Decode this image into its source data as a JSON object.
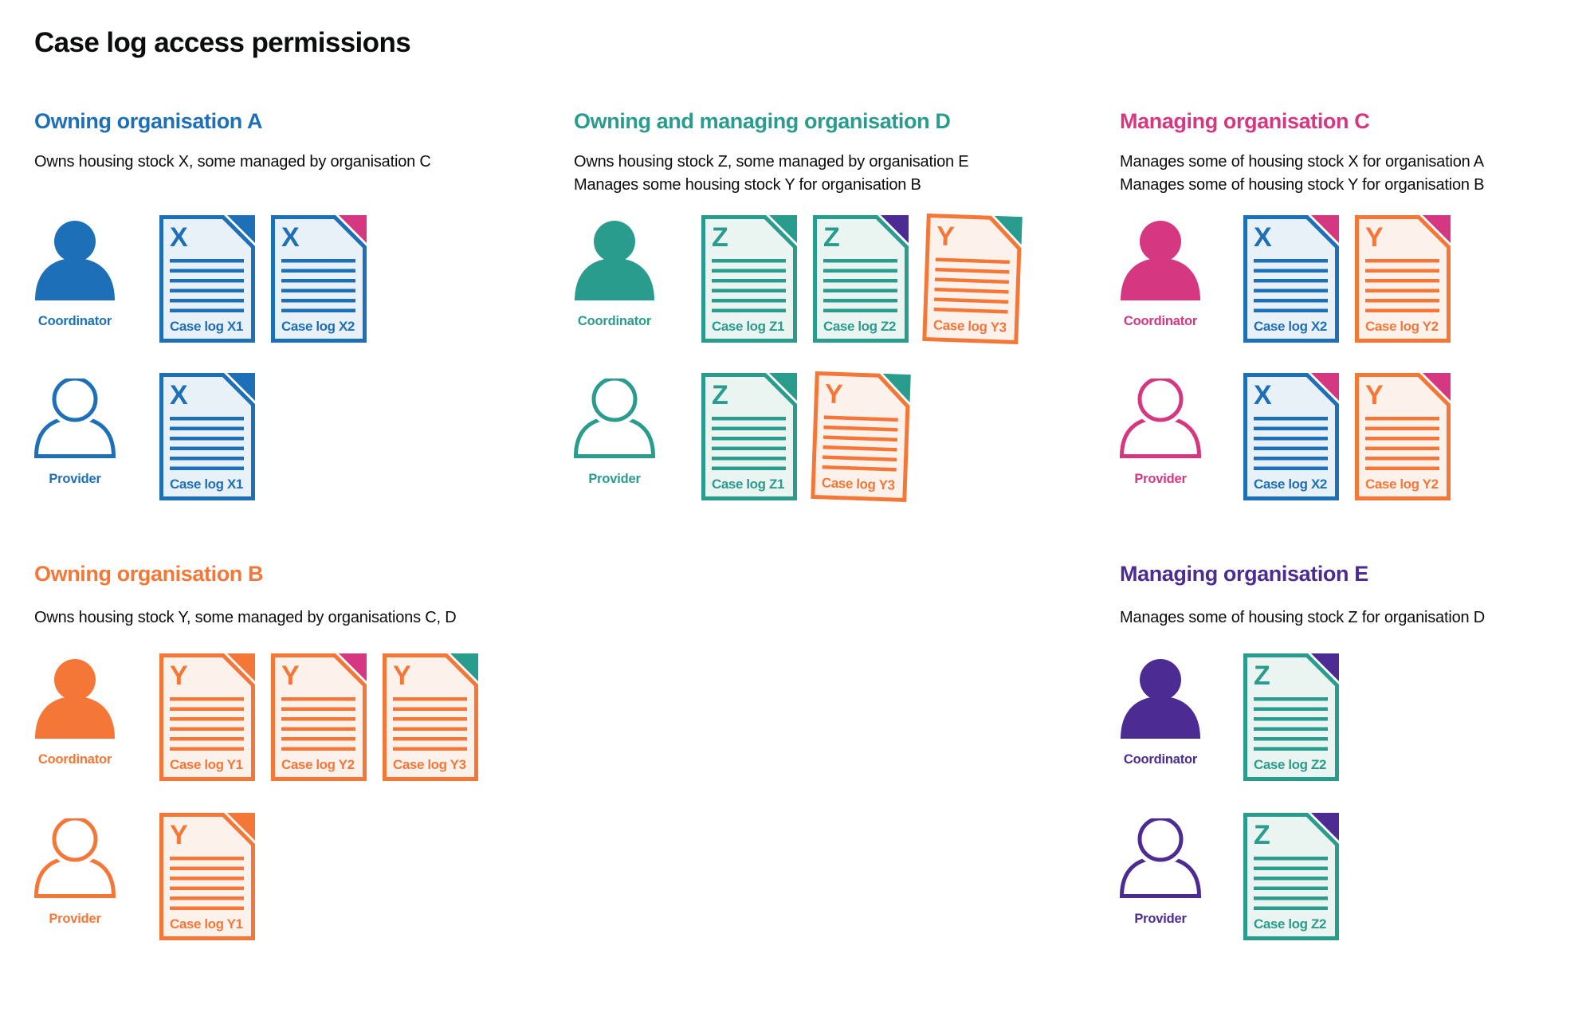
{
  "title": "Case log access permissions",
  "colors": {
    "blue": "#1d70b8",
    "teal": "#2a9c8e",
    "pink": "#d53880",
    "orange": "#f47738",
    "purple": "#4c2c92",
    "text": "#0b0c0c",
    "fills": {
      "blue": "#e9f1f8",
      "teal": "#eaf5f2",
      "orange": "#fdf2eb"
    }
  },
  "sections": [
    {
      "heading": "Owning organisation A",
      "color": "blue",
      "description": [
        "Owns housing stock X, some managed by organisation C"
      ],
      "rows": [
        {
          "role": "Coordinator",
          "docs": [
            {
              "letter": "X",
              "caption": "Case log X1",
              "doc_color": "blue",
              "fold_color": "blue"
            },
            {
              "letter": "X",
              "caption": "Case log X2",
              "doc_color": "blue",
              "fold_color": "pink"
            }
          ]
        },
        {
          "role": "Provider",
          "docs": [
            {
              "letter": "X",
              "caption": "Case log X1",
              "doc_color": "blue",
              "fold_color": "blue"
            }
          ]
        }
      ]
    },
    {
      "heading": "Owning and managing organisation D",
      "color": "teal",
      "description": [
        "Owns housing stock Z, some managed by organisation E",
        "Manages some housing stock Y for organisation B"
      ],
      "rows": [
        {
          "role": "Coordinator",
          "docs": [
            {
              "letter": "Z",
              "caption": "Case log Z1",
              "doc_color": "teal",
              "fold_color": "teal"
            },
            {
              "letter": "Z",
              "caption": "Case log Z2",
              "doc_color": "teal",
              "fold_color": "purple"
            },
            {
              "letter": "Y",
              "caption": "Case log Y3",
              "doc_color": "orange",
              "fold_color": "teal",
              "tilt": 2
            }
          ]
        },
        {
          "role": "Provider",
          "docs": [
            {
              "letter": "Z",
              "caption": "Case log Z1",
              "doc_color": "teal",
              "fold_color": "teal"
            },
            {
              "letter": "Y",
              "caption": "Case log Y3",
              "doc_color": "orange",
              "fold_color": "teal",
              "tilt": 2
            }
          ]
        }
      ]
    },
    {
      "heading": "Managing organisation C",
      "color": "pink",
      "description": [
        "Manages some of housing stock X for organisation A",
        "Manages some of housing stock Y for organisation B"
      ],
      "rows": [
        {
          "role": "Coordinator",
          "docs": [
            {
              "letter": "X",
              "caption": "Case log X2",
              "doc_color": "blue",
              "fold_color": "pink"
            },
            {
              "letter": "Y",
              "caption": "Case log Y2",
              "doc_color": "orange",
              "fold_color": "pink"
            }
          ]
        },
        {
          "role": "Provider",
          "docs": [
            {
              "letter": "X",
              "caption": "Case log X2",
              "doc_color": "blue",
              "fold_color": "pink"
            },
            {
              "letter": "Y",
              "caption": "Case log Y2",
              "doc_color": "orange",
              "fold_color": "pink"
            }
          ]
        }
      ]
    },
    {
      "heading": "Owning organisation B",
      "color": "orange",
      "description": [
        "Owns housing stock Y, some managed by organisations C, D"
      ],
      "rows": [
        {
          "role": "Coordinator",
          "docs": [
            {
              "letter": "Y",
              "caption": "Case log Y1",
              "doc_color": "orange",
              "fold_color": "orange"
            },
            {
              "letter": "Y",
              "caption": "Case log Y2",
              "doc_color": "orange",
              "fold_color": "pink"
            },
            {
              "letter": "Y",
              "caption": "Case log Y3",
              "doc_color": "orange",
              "fold_color": "teal"
            }
          ]
        },
        {
          "role": "Provider",
          "docs": [
            {
              "letter": "Y",
              "caption": "Case log Y1",
              "doc_color": "orange",
              "fold_color": "orange"
            }
          ]
        }
      ]
    },
    {
      "heading": "Managing organisation E",
      "color": "purple",
      "description": [
        "Manages some of housing stock Z for organisation D"
      ],
      "rows": [
        {
          "role": "Coordinator",
          "docs": [
            {
              "letter": "Z",
              "caption": "Case log Z2",
              "doc_color": "teal",
              "fold_color": "purple"
            }
          ]
        },
        {
          "role": "Provider",
          "docs": [
            {
              "letter": "Z",
              "caption": "Case log Z2",
              "doc_color": "teal",
              "fold_color": "purple"
            }
          ]
        }
      ]
    }
  ]
}
